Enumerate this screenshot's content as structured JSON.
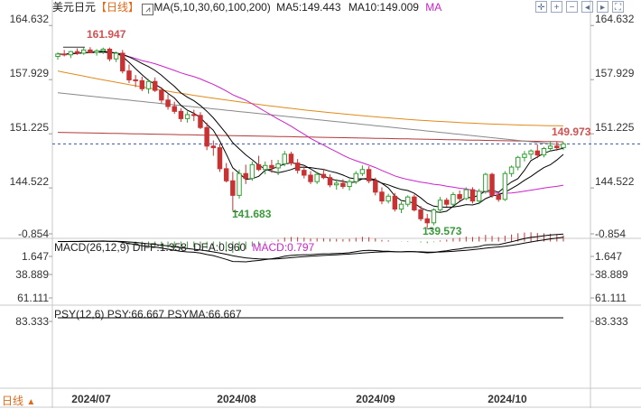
{
  "header": {
    "symbol": "美元日元",
    "period_tag": "【日线】",
    "ma_label": "MA(5,10,30,60,100,200)",
    "ma5": "MA5:149.443",
    "ma10": "MA10:149.009",
    "ma_extra": "MA"
  },
  "macd_header": {
    "label": "MACD(26,12,9)",
    "diff": "DIFF:1.358",
    "dea": "DEA:0.960",
    "macd": "MACD:0.797"
  },
  "psy_header": {
    "label": "PSY(12,6)",
    "psy": "PSY:66.667",
    "psyma": "PSYMA:66.667"
  },
  "footer": {
    "period": "日线",
    "arrow": "▲"
  },
  "toolbar_icons": [
    "crosshair-icon",
    "zoom-in-icon",
    "zoom-out-icon",
    "left-icon",
    "right-icon",
    "fullscreen-icon"
  ],
  "colors": {
    "up": "#33a033",
    "down": "#c83232",
    "ma5": "#000000",
    "ma10": "#000000",
    "ma30": "#cc22cc",
    "ma60": "#e08a1a",
    "ma100": "#888888",
    "ma200": "#b03a3a",
    "dash": "#3a50b0",
    "label_up": "#3a9a3a",
    "label_down": "#d25050"
  },
  "chart_data": [
    {
      "type": "candlestick",
      "title": "美元日元",
      "x_axis_labels": [
        "2024/07",
        "2024/08",
        "2024/09",
        "2024/10"
      ],
      "y_ticks": [
        164.632,
        157.929,
        151.225,
        144.522
      ],
      "ylim": [
        138.5,
        166.0
      ],
      "annotations": [
        {
          "text": "161.947",
          "value": 161.947
        },
        {
          "text": "141.683",
          "value": 141.683
        },
        {
          "text": "139.573",
          "value": 139.573
        },
        {
          "text": "149.973",
          "value": 149.973
        }
      ],
      "last_price": 149.973,
      "candles": [
        [
          160.8,
          161.3,
          160.4,
          161.1
        ],
        [
          161.1,
          161.6,
          160.8,
          161.0
        ],
        [
          161.0,
          161.5,
          160.6,
          161.4
        ],
        [
          161.4,
          161.8,
          161.0,
          161.2
        ],
        [
          161.2,
          161.9,
          161.0,
          161.6
        ],
        [
          161.6,
          161.95,
          161.2,
          161.3
        ],
        [
          161.3,
          161.7,
          160.9,
          161.5
        ],
        [
          161.5,
          161.9,
          161.1,
          161.7
        ],
        [
          161.7,
          161.9,
          160.2,
          160.5
        ],
        [
          160.5,
          161.4,
          160.1,
          161.2
        ],
        [
          161.2,
          161.6,
          158.7,
          159.0
        ],
        [
          159.0,
          159.8,
          157.5,
          157.9
        ],
        [
          157.9,
          158.5,
          157.0,
          157.8
        ],
        [
          157.8,
          158.3,
          156.5,
          156.8
        ],
        [
          156.8,
          158.0,
          156.2,
          157.7
        ],
        [
          157.7,
          158.2,
          156.4,
          156.6
        ],
        [
          156.6,
          157.0,
          155.0,
          155.4
        ],
        [
          155.4,
          156.1,
          154.2,
          154.6
        ],
        [
          154.6,
          155.2,
          153.7,
          154.0
        ],
        [
          154.0,
          154.4,
          152.7,
          153.1
        ],
        [
          153.1,
          154.0,
          152.6,
          153.6
        ],
        [
          153.6,
          154.2,
          152.8,
          153.5
        ],
        [
          153.5,
          153.9,
          151.8,
          152.0
        ],
        [
          152.0,
          152.6,
          149.2,
          149.7
        ],
        [
          149.7,
          150.4,
          148.5,
          149.5
        ],
        [
          149.5,
          150.0,
          146.5,
          146.9
        ],
        [
          146.9,
          147.6,
          145.2,
          145.4
        ],
        [
          145.4,
          146.5,
          141.68,
          143.6
        ],
        [
          143.6,
          146.8,
          143.2,
          146.3
        ],
        [
          146.3,
          147.4,
          145.0,
          145.7
        ],
        [
          145.7,
          147.8,
          145.4,
          147.4
        ],
        [
          147.4,
          148.5,
          146.6,
          146.8
        ],
        [
          146.8,
          147.8,
          146.2,
          147.3
        ],
        [
          147.3,
          148.0,
          146.4,
          147.0
        ],
        [
          147.0,
          148.0,
          146.1,
          147.5
        ],
        [
          147.5,
          149.1,
          147.2,
          148.7
        ],
        [
          148.7,
          149.0,
          147.3,
          147.6
        ],
        [
          147.6,
          148.1,
          146.3,
          146.7
        ],
        [
          146.7,
          147.2,
          145.7,
          146.1
        ],
        [
          146.1,
          146.6,
          145.0,
          145.3
        ],
        [
          145.3,
          146.5,
          145.0,
          146.2
        ],
        [
          146.2,
          146.9,
          145.6,
          145.8
        ],
        [
          145.8,
          146.2,
          144.6,
          144.9
        ],
        [
          144.9,
          145.6,
          144.3,
          145.1
        ],
        [
          145.1,
          145.6,
          144.4,
          144.7
        ],
        [
          144.7,
          145.6,
          144.2,
          145.3
        ],
        [
          145.3,
          146.6,
          145.0,
          146.3
        ],
        [
          146.3,
          147.3,
          146.0,
          146.8
        ],
        [
          146.8,
          147.2,
          145.1,
          145.4
        ],
        [
          145.4,
          145.8,
          143.6,
          144.0
        ],
        [
          144.0,
          144.6,
          142.5,
          142.9
        ],
        [
          142.9,
          143.8,
          142.6,
          143.5
        ],
        [
          143.5,
          143.9,
          141.6,
          141.9
        ],
        [
          141.9,
          142.8,
          141.4,
          142.5
        ],
        [
          142.5,
          143.6,
          142.2,
          143.4
        ],
        [
          143.4,
          143.7,
          141.6,
          141.8
        ],
        [
          141.8,
          142.3,
          140.4,
          140.7
        ],
        [
          140.7,
          141.3,
          139.57,
          140.2
        ],
        [
          140.2,
          142.0,
          139.9,
          141.8
        ],
        [
          141.8,
          143.4,
          141.6,
          143.0
        ],
        [
          143.0,
          143.3,
          142.2,
          142.5
        ],
        [
          142.5,
          144.0,
          142.3,
          143.7
        ],
        [
          143.7,
          144.2,
          142.9,
          143.2
        ],
        [
          143.2,
          144.6,
          143.0,
          144.3
        ],
        [
          144.3,
          144.6,
          142.6,
          142.9
        ],
        [
          142.9,
          144.4,
          142.5,
          144.1
        ],
        [
          144.1,
          146.4,
          143.8,
          146.2
        ],
        [
          146.2,
          146.4,
          143.3,
          143.6
        ],
        [
          143.6,
          143.9,
          142.8,
          143.1
        ],
        [
          143.1,
          146.6,
          142.9,
          146.3
        ],
        [
          146.3,
          147.3,
          145.9,
          147.1
        ],
        [
          147.1,
          148.5,
          146.7,
          148.3
        ],
        [
          148.3,
          149.1,
          147.8,
          148.7
        ],
        [
          148.7,
          149.3,
          148.1,
          149.1
        ],
        [
          149.1,
          149.9,
          148.2,
          148.6
        ],
        [
          148.6,
          149.6,
          148.3,
          149.4
        ],
        [
          149.4,
          150.3,
          149.0,
          149.7
        ],
        [
          149.7,
          150.3,
          149.1,
          149.5
        ],
        [
          149.5,
          150.2,
          149.2,
          149.973
        ]
      ]
    },
    {
      "type": "bar+line",
      "title": "MACD(26,12,9)",
      "y_ticks": [
        1.647,
        -0.854
      ],
      "series_names": [
        "DIFF",
        "DEA",
        "MACD"
      ],
      "values": {
        "DIFF": 1.358,
        "DEA": 0.96,
        "MACD": 0.797
      }
    },
    {
      "type": "line",
      "title": "PSY(12,6)",
      "y_ticks": [
        83.333,
        61.111,
        38.889
      ],
      "series_names": [
        "PSY",
        "PSYMA"
      ],
      "values": {
        "PSY": 66.667,
        "PSYMA": 66.667
      }
    }
  ]
}
